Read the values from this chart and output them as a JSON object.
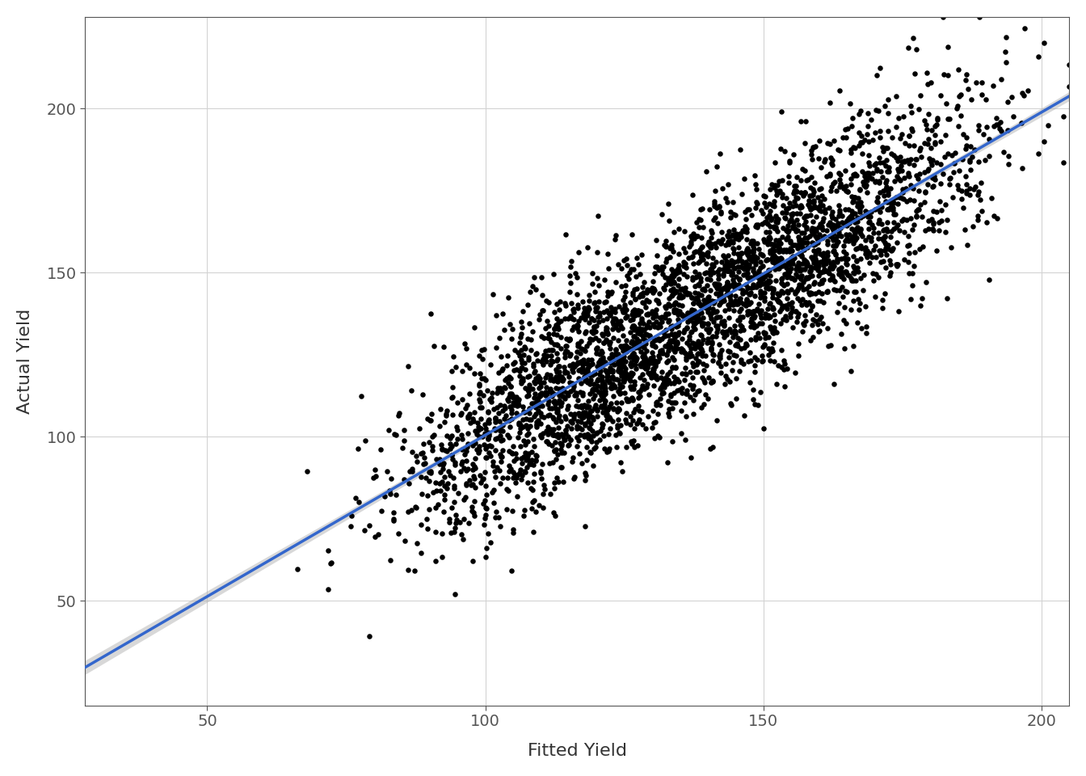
{
  "title": "",
  "xlabel": "Fitted Yield",
  "ylabel": "Actual Yield",
  "xlim": [
    28,
    205
  ],
  "ylim": [
    18,
    228
  ],
  "xticks": [
    50,
    100,
    150,
    200
  ],
  "yticks": [
    50,
    100,
    150,
    200
  ],
  "background_color": "#FFFFFF",
  "plot_bg_color": "#FFFFFF",
  "grid_color": "#D3D3D3",
  "point_color": "#000000",
  "point_size": 22,
  "point_alpha": 1.0,
  "line_color": "#3366CC",
  "line_width": 2.5,
  "ci_color": "#AAAAAA",
  "ci_alpha": 0.45,
  "n_points": 3762,
  "seed": 42,
  "xlabel_fontsize": 16,
  "ylabel_fontsize": 16,
  "tick_fontsize": 14,
  "spine_color": "#555555",
  "tick_color": "#555555"
}
